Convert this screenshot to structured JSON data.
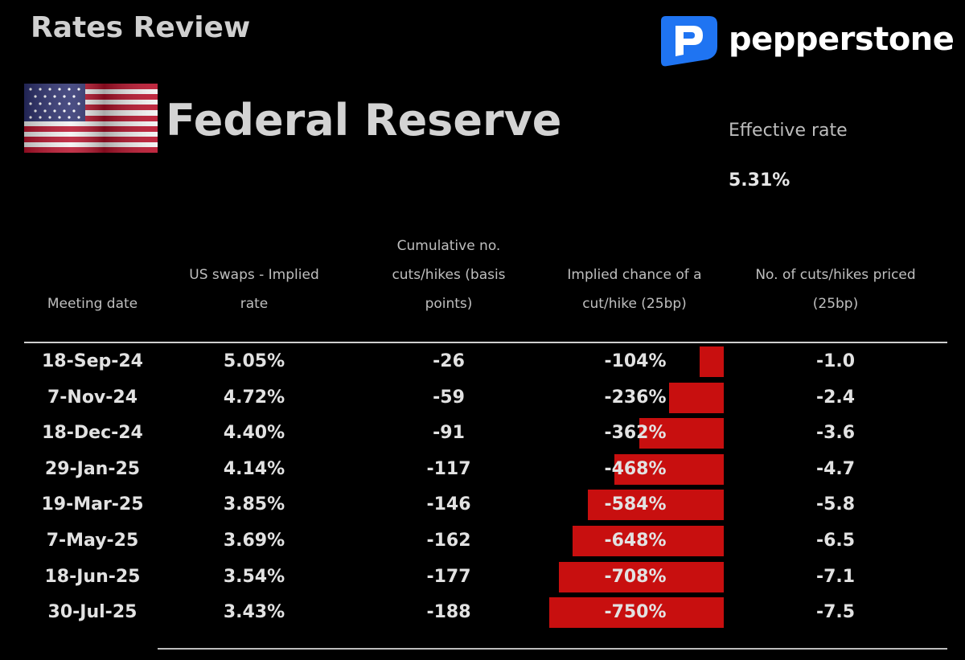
{
  "header": {
    "title": "Rates Review",
    "brand": "pepperstone"
  },
  "bank": {
    "name": "Federal Reserve"
  },
  "effective_rate": {
    "label": "Effective rate",
    "value": "5.31%"
  },
  "columns": [
    [
      "Meeting date"
    ],
    [
      "US swaps - Implied",
      "rate"
    ],
    [
      "Cumulative no.",
      "cuts/hikes (basis",
      "points)"
    ],
    [
      "Implied chance of a",
      "cut/hike (25bp)"
    ],
    [
      "No. of cuts/hikes priced",
      "(25bp)"
    ]
  ],
  "colors": {
    "bar": "#c80f0f",
    "background": "#000000",
    "logo_blue": "#1f74f2"
  },
  "icons": {
    "logo": "pepperstone-p-icon",
    "flag": "us-flag-icon"
  },
  "chart_data": {
    "type": "table",
    "rows": [
      {
        "date": "18-Sep-24",
        "implied_rate": "5.05%",
        "cumulative_bp": "-26",
        "implied_chance": "-104%",
        "implied_chance_value": -104,
        "cuts_priced": "-1.0"
      },
      {
        "date": "7-Nov-24",
        "implied_rate": "4.72%",
        "cumulative_bp": "-59",
        "implied_chance": "-236%",
        "implied_chance_value": -236,
        "cuts_priced": "-2.4"
      },
      {
        "date": "18-Dec-24",
        "implied_rate": "4.40%",
        "cumulative_bp": "-91",
        "implied_chance": "-362%",
        "implied_chance_value": -362,
        "cuts_priced": "-3.6"
      },
      {
        "date": "29-Jan-25",
        "implied_rate": "4.14%",
        "cumulative_bp": "-117",
        "implied_chance": "-468%",
        "implied_chance_value": -468,
        "cuts_priced": "-4.7"
      },
      {
        "date": "19-Mar-25",
        "implied_rate": "3.85%",
        "cumulative_bp": "-146",
        "implied_chance": "-584%",
        "implied_chance_value": -584,
        "cuts_priced": "-5.8"
      },
      {
        "date": "7-May-25",
        "implied_rate": "3.69%",
        "cumulative_bp": "-162",
        "implied_chance": "-648%",
        "implied_chance_value": -648,
        "cuts_priced": "-6.5"
      },
      {
        "date": "18-Jun-25",
        "implied_rate": "3.54%",
        "cumulative_bp": "-177",
        "implied_chance": "-708%",
        "implied_chance_value": -708,
        "cuts_priced": "-7.1"
      },
      {
        "date": "30-Jul-25",
        "implied_rate": "3.43%",
        "cumulative_bp": "-188",
        "implied_chance": "-750%",
        "implied_chance_value": -750,
        "cuts_priced": "-7.5"
      }
    ]
  }
}
